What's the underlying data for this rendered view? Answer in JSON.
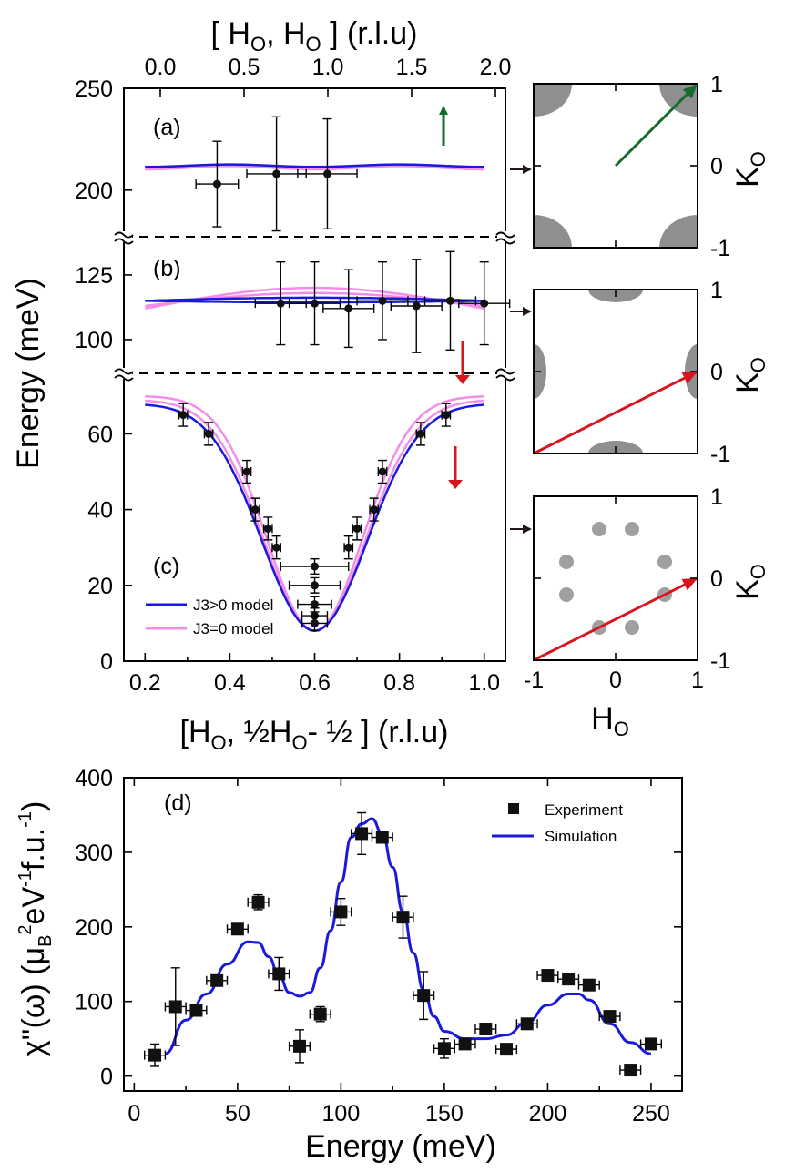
{
  "colors": {
    "j3_pos": "#1a1adc",
    "j3_zero": "#f28ee8",
    "green_arrow": "#166b2e",
    "red_arrow": "#d8141e",
    "pocket": "#8f8f8f",
    "dot": "#a0a0a0",
    "side_arrow": "#231815",
    "marker": "#111111",
    "sim": "#1a1adc"
  },
  "chart_data": [
    {
      "id": "dispersion",
      "type": "scatter",
      "top_axis_label": "[ H_O, H_O ] (r.l.u)",
      "top_axis_ticks": [
        "0.0",
        "0.5",
        "1.0",
        "1.5",
        "2.0"
      ],
      "bottom_axis_label": "[H_O, ½H_O- ½ ] (r.l.u)",
      "bottom_axis_ticks": [
        "0.2",
        "0.4",
        "0.6",
        "0.8",
        "1.0"
      ],
      "ylabel": "Energy (meV)",
      "xlim": [
        0.15,
        1.05
      ],
      "legend": [
        "J3>0 model",
        "J3=0 model"
      ],
      "panels": [
        {
          "label": "(a)",
          "ylim": [
            178,
            250
          ],
          "yticks": [
            "250",
            "200"
          ],
          "j3_pos_level": 212,
          "j3_zero_level": 211,
          "points": [
            {
              "x": 0.37,
              "y": 203,
              "xerr": 0.05,
              "yerr": 21
            },
            {
              "x": 0.51,
              "y": 208,
              "xerr": 0.07,
              "yerr": 28
            },
            {
              "x": 0.63,
              "y": 208,
              "xerr": 0.07,
              "yerr": 27
            }
          ]
        },
        {
          "label": "(b)",
          "ylim": [
            88,
            138
          ],
          "yticks": [
            "125",
            "100"
          ],
          "j3_pos_level": 115,
          "j3_zero_level": 112,
          "points": [
            {
              "x": 0.52,
              "y": 114,
              "xerr": 0.06,
              "yerr": 16
            },
            {
              "x": 0.6,
              "y": 114,
              "xerr": 0.06,
              "yerr": 16
            },
            {
              "x": 0.68,
              "y": 112,
              "xerr": 0.06,
              "yerr": 15
            },
            {
              "x": 0.76,
              "y": 115,
              "xerr": 0.06,
              "yerr": 15
            },
            {
              "x": 0.84,
              "y": 113,
              "xerr": 0.06,
              "yerr": 18
            },
            {
              "x": 0.92,
              "y": 115,
              "xerr": 0.06,
              "yerr": 19
            },
            {
              "x": 1.0,
              "y": 114,
              "xerr": 0.06,
              "yerr": 16
            }
          ]
        },
        {
          "label": "(c)",
          "ylim": [
            0,
            75
          ],
          "yticks": [
            "0",
            "20",
            "40",
            "60"
          ],
          "points": [
            {
              "x": 0.29,
              "y": 65,
              "xerr": 0.01,
              "yerr": 3
            },
            {
              "x": 0.35,
              "y": 60,
              "xerr": 0.01,
              "yerr": 3
            },
            {
              "x": 0.44,
              "y": 50,
              "xerr": 0.01,
              "yerr": 3
            },
            {
              "x": 0.46,
              "y": 40,
              "xerr": 0.01,
              "yerr": 3
            },
            {
              "x": 0.49,
              "y": 35,
              "xerr": 0.01,
              "yerr": 3
            },
            {
              "x": 0.51,
              "y": 30,
              "xerr": 0.01,
              "yerr": 3
            },
            {
              "x": 0.6,
              "y": 25,
              "xerr": 0.08,
              "yerr": 2
            },
            {
              "x": 0.6,
              "y": 20,
              "xerr": 0.06,
              "yerr": 2
            },
            {
              "x": 0.6,
              "y": 15,
              "xerr": 0.04,
              "yerr": 2
            },
            {
              "x": 0.6,
              "y": 12,
              "xerr": 0.03,
              "yerr": 2
            },
            {
              "x": 0.6,
              "y": 10,
              "xerr": 0.03,
              "yerr": 2
            },
            {
              "x": 0.68,
              "y": 30,
              "xerr": 0.01,
              "yerr": 3
            },
            {
              "x": 0.7,
              "y": 35,
              "xerr": 0.01,
              "yerr": 3
            },
            {
              "x": 0.74,
              "y": 40,
              "xerr": 0.01,
              "yerr": 3
            },
            {
              "x": 0.76,
              "y": 50,
              "xerr": 0.01,
              "yerr": 3
            },
            {
              "x": 0.85,
              "y": 60,
              "xerr": 0.01,
              "yerr": 3
            },
            {
              "x": 0.91,
              "y": 65,
              "xerr": 0.01,
              "yerr": 3
            }
          ]
        }
      ]
    },
    {
      "id": "bz_maps",
      "type": "scatter",
      "xlabel": "H_O",
      "ylabel": "K_O",
      "xticks": [
        "-1",
        "0",
        "1"
      ],
      "yticks": [
        "1",
        "0",
        "-1"
      ],
      "xlim": [
        -1,
        1
      ],
      "ylim": [
        -1,
        1
      ],
      "arrows": [
        {
          "from": [
            0,
            0
          ],
          "to": [
            1,
            1
          ],
          "color": "green"
        },
        {
          "from": [
            -1,
            -1
          ],
          "to": [
            1,
            0
          ],
          "color": "red"
        },
        {
          "from": [
            -1,
            -1
          ],
          "to": [
            1,
            0
          ],
          "color": "red"
        }
      ],
      "dots_c": [
        [
          -0.2,
          0.6
        ],
        [
          0.2,
          0.6
        ],
        [
          -0.6,
          0.2
        ],
        [
          -0.6,
          -0.2
        ],
        [
          0.6,
          0.2
        ],
        [
          0.6,
          -0.2
        ],
        [
          -0.2,
          -0.6
        ],
        [
          0.2,
          -0.6
        ]
      ]
    },
    {
      "id": "chi",
      "type": "scatter",
      "label": "(d)",
      "xlabel": "Energy (meV)",
      "ylabel": "χ''(ω) (μ_B²eV⁻¹f.u.⁻¹)",
      "xlim": [
        -5,
        265
      ],
      "ylim": [
        -20,
        400
      ],
      "xticks": [
        "0",
        "50",
        "100",
        "150",
        "200",
        "250"
      ],
      "yticks": [
        "0",
        "100",
        "200",
        "300",
        "400"
      ],
      "legend": [
        "Experiment",
        "Simulation"
      ],
      "points": [
        {
          "x": 10,
          "y": 28,
          "xerr": 5,
          "yerr": 15
        },
        {
          "x": 20,
          "y": 93,
          "xerr": 5,
          "yerr": 52
        },
        {
          "x": 30,
          "y": 88,
          "xerr": 5,
          "yerr": 6
        },
        {
          "x": 40,
          "y": 128,
          "xerr": 5,
          "yerr": 6
        },
        {
          "x": 50,
          "y": 197,
          "xerr": 5,
          "yerr": 5
        },
        {
          "x": 60,
          "y": 233,
          "xerr": 5,
          "yerr": 10
        },
        {
          "x": 70,
          "y": 137,
          "xerr": 5,
          "yerr": 22
        },
        {
          "x": 80,
          "y": 40,
          "xerr": 5,
          "yerr": 22
        },
        {
          "x": 90,
          "y": 83,
          "xerr": 5,
          "yerr": 10
        },
        {
          "x": 100,
          "y": 220,
          "xerr": 5,
          "yerr": 18
        },
        {
          "x": 110,
          "y": 325,
          "xerr": 5,
          "yerr": 28
        },
        {
          "x": 120,
          "y": 320,
          "xerr": 5,
          "yerr": 6
        },
        {
          "x": 130,
          "y": 213,
          "xerr": 5,
          "yerr": 28
        },
        {
          "x": 140,
          "y": 108,
          "xerr": 5,
          "yerr": 32
        },
        {
          "x": 150,
          "y": 37,
          "xerr": 5,
          "yerr": 13
        },
        {
          "x": 160,
          "y": 43,
          "xerr": 5,
          "yerr": 5
        },
        {
          "x": 170,
          "y": 63,
          "xerr": 5,
          "yerr": 5
        },
        {
          "x": 180,
          "y": 36,
          "xerr": 5,
          "yerr": 5
        },
        {
          "x": 190,
          "y": 70,
          "xerr": 5,
          "yerr": 6
        },
        {
          "x": 200,
          "y": 135,
          "xerr": 5,
          "yerr": 5
        },
        {
          "x": 210,
          "y": 130,
          "xerr": 5,
          "yerr": 5
        },
        {
          "x": 220,
          "y": 122,
          "xerr": 5,
          "yerr": 5
        },
        {
          "x": 230,
          "y": 80,
          "xerr": 5,
          "yerr": 6
        },
        {
          "x": 240,
          "y": 8,
          "xerr": 5,
          "yerr": 5
        },
        {
          "x": 250,
          "y": 43,
          "xerr": 5,
          "yerr": 6
        }
      ],
      "simulation": {
        "x": [
          15,
          25,
          35,
          45,
          55,
          60,
          65,
          70,
          75,
          80,
          85,
          90,
          95,
          100,
          105,
          110,
          115,
          120,
          125,
          130,
          135,
          140,
          145,
          150,
          160,
          170,
          180,
          190,
          200,
          210,
          215,
          220,
          230,
          240,
          250
        ],
        "y": [
          30,
          75,
          110,
          150,
          180,
          179,
          160,
          135,
          112,
          107,
          112,
          145,
          195,
          260,
          320,
          338,
          345,
          325,
          280,
          220,
          165,
          115,
          80,
          60,
          50,
          50,
          55,
          72,
          95,
          110,
          110,
          102,
          70,
          45,
          30
        ]
      }
    }
  ]
}
